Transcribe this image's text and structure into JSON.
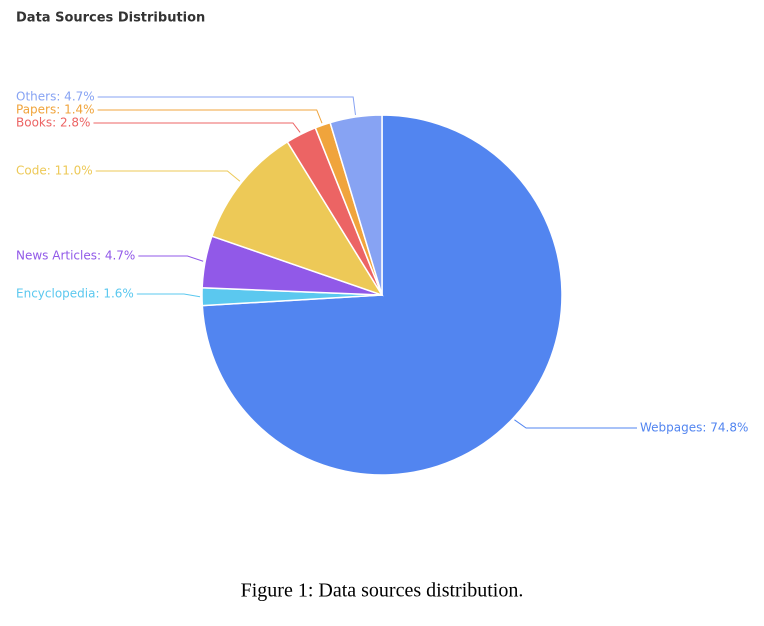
{
  "chart_data": {
    "type": "pie",
    "title": "Data Sources Distribution",
    "values": [
      74.8,
      1.6,
      4.7,
      11.0,
      2.8,
      1.4,
      4.7
    ],
    "value_labels": [
      "Webpages: 74.8%",
      "Encyclopedia: 1.6%",
      "News Articles: 4.7%",
      "Code: 11.0%",
      "Books: 2.8%",
      "Papers: 1.4%",
      "Others: 4.7%"
    ],
    "colors": [
      "#5285f0",
      "#5bc8ef",
      "#9159e8",
      "#edc957",
      "#ec6464",
      "#f0a43c",
      "#87a3f3"
    ]
  },
  "caption": "Figure 1: Data sources distribution."
}
